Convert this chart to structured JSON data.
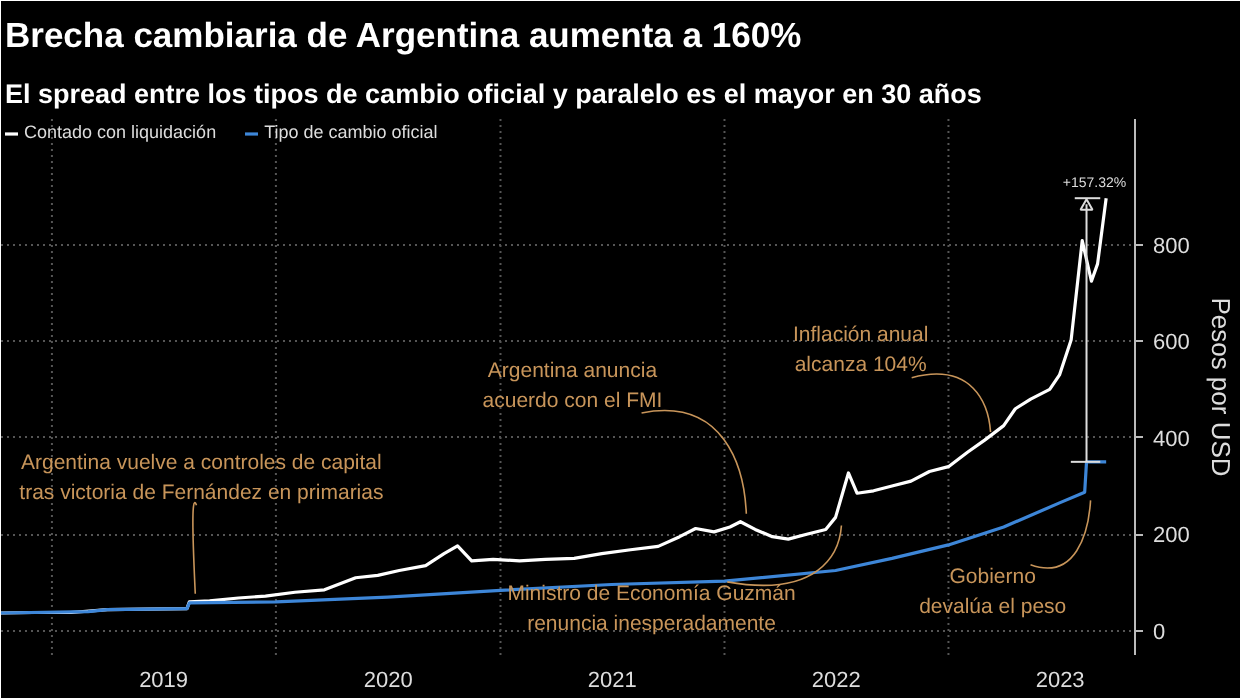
{
  "chart_data": {
    "type": "line",
    "title": "Brecha cambiaria de Argentina aumenta a 160%",
    "subtitle": "El spread entre los tipos de cambio oficial y paralelo es el mayor en 30 años",
    "ylabel": "Pesos por USD",
    "xlim": [
      "2018-10-10",
      "2023-11-01"
    ],
    "ylim": [
      -50,
      1060
    ],
    "xticks": [
      {
        "value": "2019-01-01",
        "label": null
      },
      {
        "value": "2019-07-02",
        "label": "2019"
      },
      {
        "value": "2020-01-01",
        "label": null
      },
      {
        "value": "2020-07-02",
        "label": "2020"
      },
      {
        "value": "2021-01-01",
        "label": null
      },
      {
        "value": "2021-07-02",
        "label": "2021"
      },
      {
        "value": "2022-01-01",
        "label": null
      },
      {
        "value": "2022-07-02",
        "label": "2022"
      },
      {
        "value": "2023-01-01",
        "label": null
      },
      {
        "value": "2023-07-02",
        "label": "2023"
      }
    ],
    "yticks": [
      0,
      200,
      400,
      600,
      800
    ],
    "grid": true,
    "legend": "top left",
    "series": [
      {
        "name": "Contado con liquidación",
        "color": "#ffffff",
        "x": [
          "2018-10-10",
          "2018-12-01",
          "2019-02-01",
          "2019-04-01",
          "2019-06-01",
          "2019-08-09",
          "2019-08-13",
          "2019-09-15",
          "2019-11-01",
          "2019-12-15",
          "2020-02-01",
          "2020-03-20",
          "2020-05-10",
          "2020-06-15",
          "2020-07-20",
          "2020-09-01",
          "2020-10-01",
          "2020-10-23",
          "2020-11-15",
          "2020-12-20",
          "2021-02-01",
          "2021-03-15",
          "2021-05-01",
          "2021-06-15",
          "2021-08-01",
          "2021-09-15",
          "2021-10-20",
          "2021-11-15",
          "2021-12-15",
          "2022-01-10",
          "2022-01-27",
          "2022-02-20",
          "2022-03-20",
          "2022-04-15",
          "2022-05-15",
          "2022-06-15",
          "2022-07-01",
          "2022-07-22",
          "2022-08-05",
          "2022-09-01",
          "2022-10-01",
          "2022-11-01",
          "2022-12-01",
          "2023-01-01",
          "2023-02-01",
          "2023-03-01",
          "2023-04-01",
          "2023-04-20",
          "2023-05-15",
          "2023-06-15",
          "2023-07-01",
          "2023-07-20",
          "2023-08-07",
          "2023-08-22",
          "2023-09-01",
          "2023-09-15"
        ],
        "values": [
          37,
          38,
          38,
          44,
          45,
          46,
          60,
          62,
          68,
          72,
          80,
          85,
          110,
          115,
          125,
          135,
          160,
          176,
          145,
          148,
          145,
          148,
          150,
          160,
          168,
          175,
          195,
          212,
          205,
          215,
          226,
          210,
          195,
          190,
          200,
          210,
          235,
          327,
          285,
          290,
          300,
          310,
          330,
          340,
          370,
          395,
          425,
          460,
          480,
          500,
          530,
          603,
          808,
          724,
          760,
          896
        ]
      },
      {
        "name": "Tipo de cambio oficial",
        "color": "#3d86d8",
        "x": [
          "2018-10-10",
          "2019-03-01",
          "2019-04-01",
          "2019-08-09",
          "2019-08-13",
          "2020-01-01",
          "2020-07-01",
          "2021-01-01",
          "2021-07-01",
          "2022-01-01",
          "2022-07-01",
          "2022-10-01",
          "2023-01-01",
          "2023-04-01",
          "2023-07-01",
          "2023-08-11",
          "2023-08-14",
          "2023-09-15"
        ],
        "values": [
          37,
          40,
          44,
          46,
          58,
          60,
          70,
          84,
          96,
          103,
          125,
          150,
          178,
          215,
          265,
          287,
          350,
          350
        ]
      }
    ],
    "annotations": [
      {
        "text": "Argentina vuelve a controles de capital\ntras victoria de Fernández en primarias",
        "x": "2019-08-13",
        "y": 60
      },
      {
        "text": "Argentina anuncia\nacuerdo con el FMI",
        "x": "2022-01-27",
        "y": 226
      },
      {
        "text": "Inflación anual\nalcanza 104%",
        "x": "2023-03-01",
        "y": 395
      },
      {
        "text": "Ministro de Economía Guzmán\nrenuncia inesperadamente",
        "x": "2022-07-01",
        "y": 235
      },
      {
        "text": "Gobierno\ndevalúa el peso",
        "x": "2023-08-11",
        "y": 287
      },
      "+157.32%"
    ]
  }
}
